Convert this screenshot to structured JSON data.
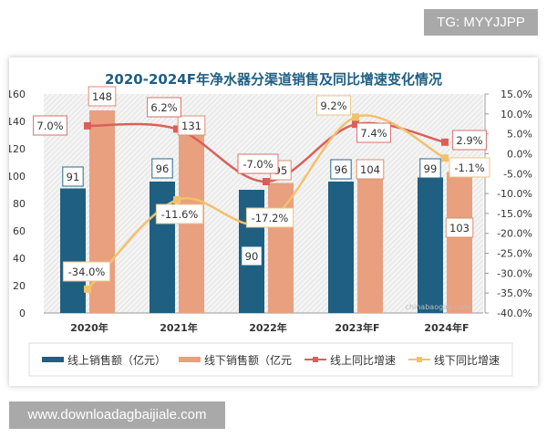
{
  "watermark_top": "TG: MYYJJPP",
  "watermark_bottom": "www.downloadagbaijiale.com",
  "chart_data": {
    "type": "bar+line",
    "title": "2020-2024F年净水器分渠道销售及同比增速变化情况",
    "categories": [
      "2020年",
      "2021年",
      "2022年",
      "2023年F",
      "2024年F"
    ],
    "y_left": {
      "ylim": [
        0,
        160
      ],
      "ticks": [
        0,
        20,
        40,
        60,
        80,
        100,
        120,
        140,
        160
      ]
    },
    "y_right": {
      "ylim": [
        -40,
        15
      ],
      "ticks": [
        "15.0%",
        "10.0%",
        "5.0%",
        "0.0%",
        "-5.0%",
        "-10.0%",
        "-15.0%",
        "-20.0%",
        "-25.0%",
        "-30.0%",
        "-35.0%",
        "-40.0%"
      ]
    },
    "series": [
      {
        "name": "线上销售额（亿元）",
        "type": "bar",
        "axis": "left",
        "color": "#1f5f82",
        "values": [
          91,
          96,
          90,
          96,
          99
        ]
      },
      {
        "name": "线下销售额（亿元",
        "type": "bar",
        "axis": "left",
        "color": "#e9a07e",
        "values": [
          148,
          131,
          95,
          104,
          103
        ]
      },
      {
        "name": "线上同比增速",
        "type": "line",
        "axis": "right",
        "color": "#d9605a",
        "values": [
          7.0,
          6.2,
          -7.0,
          7.4,
          2.9
        ],
        "labels": [
          "7.0%",
          "6.2%",
          "-7.0%",
          "7.4%",
          "2.9%"
        ]
      },
      {
        "name": "线下同比增速",
        "type": "line",
        "axis": "right",
        "color": "#f2c16e",
        "values": [
          -34.0,
          -11.6,
          -17.2,
          9.2,
          -1.1
        ],
        "labels": [
          "-34.0%",
          "-11.6%",
          "-17.2%",
          "9.2%",
          "-1.1%"
        ]
      }
    ],
    "legend": "bottom",
    "grid": false,
    "source_watermark": "chinabaogao.com"
  }
}
